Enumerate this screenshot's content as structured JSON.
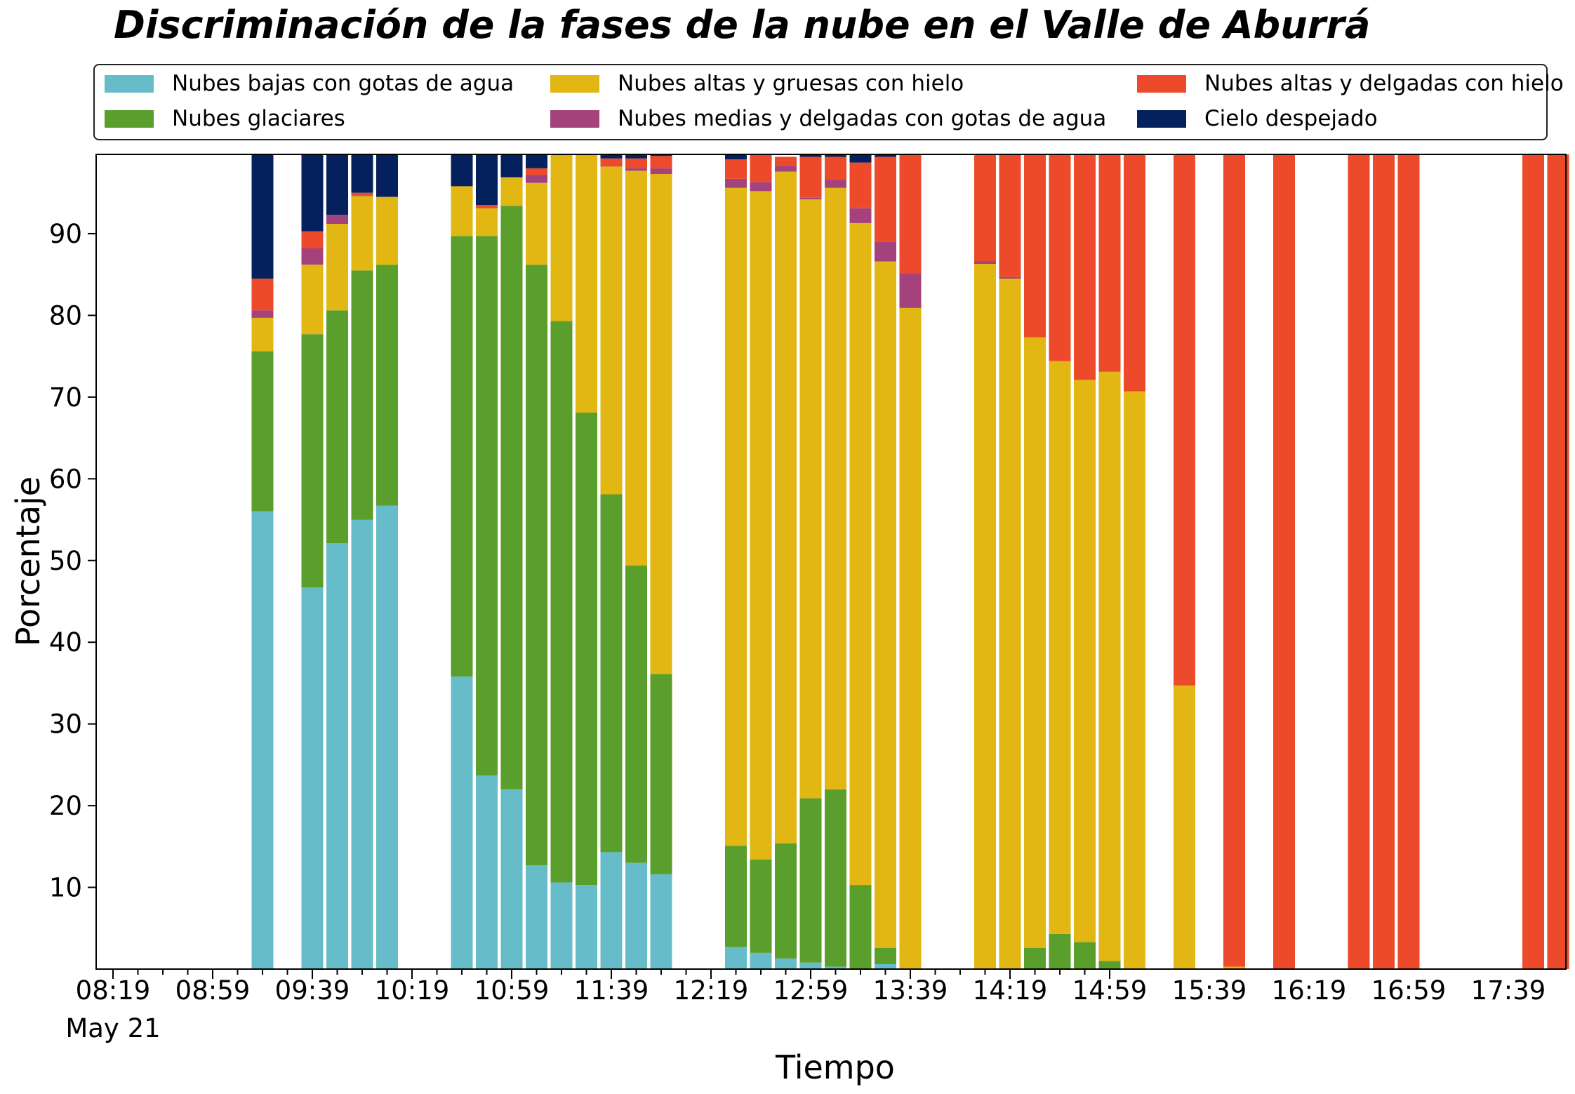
{
  "chart_data": {
    "type": "bar",
    "stacked": true,
    "title": "Discriminación de la fases de la nube en el Valle de Aburrá",
    "xlabel": "Tiempo",
    "ylabel": "Porcentaje",
    "x_start": "08:19",
    "x_step_minutes": 10,
    "x_tick_labels": [
      "08:19",
      "08:59",
      "09:39",
      "10:19",
      "10:59",
      "11:39",
      "12:19",
      "12:59",
      "13:39",
      "14:19",
      "14:59",
      "15:39",
      "16:19",
      "16:59",
      "17:39"
    ],
    "x_tick_sublabel": "May 21",
    "y_ticks": [
      10,
      20,
      30,
      40,
      50,
      60,
      70,
      80,
      90
    ],
    "ylim": [
      0,
      99.7
    ],
    "legend_position": "top, above plot, 3 columns",
    "grid": false,
    "series": [
      {
        "name": "Nubes bajas con gotas de agua",
        "color": "#66BDC9"
      },
      {
        "name": "Nubes glaciares",
        "color": "#5A9E2B"
      },
      {
        "name": "Nubes altas y gruesas con hielo",
        "color": "#E2B714"
      },
      {
        "name": "Nubes medias y delgadas con gotas de agua",
        "color": "#A4427B"
      },
      {
        "name": "Nubes altas y delgadas con hielo",
        "color": "#EC4A2B"
      },
      {
        "name": "Cielo despejado",
        "color": "#04215D"
      }
    ],
    "bars": [
      {
        "time": "09:19",
        "values": [
          56.0,
          19.6,
          4.1,
          0.9,
          3.9,
          15.2
        ]
      },
      {
        "time": "09:39",
        "values": [
          46.7,
          31.0,
          8.5,
          2.0,
          2.1,
          9.4
        ]
      },
      {
        "time": "09:49",
        "values": [
          52.1,
          28.5,
          10.6,
          1.1,
          0.0,
          7.4
        ]
      },
      {
        "time": "09:59",
        "values": [
          55.0,
          30.5,
          9.1,
          0.1,
          0.3,
          4.7
        ]
      },
      {
        "time": "10:09",
        "values": [
          56.7,
          29.5,
          8.3,
          0.0,
          0.0,
          5.2
        ]
      },
      {
        "time": "10:39",
        "values": [
          35.8,
          53.9,
          6.1,
          0.0,
          0.0,
          3.9
        ]
      },
      {
        "time": "10:49",
        "values": [
          23.7,
          66.0,
          3.4,
          0.0,
          0.4,
          6.2
        ]
      },
      {
        "time": "10:59",
        "values": [
          22.0,
          71.4,
          3.5,
          0.0,
          0.0,
          2.8
        ]
      },
      {
        "time": "11:09",
        "values": [
          12.7,
          73.5,
          10.0,
          1.0,
          0.8,
          1.7
        ]
      },
      {
        "time": "11:19",
        "values": [
          10.6,
          68.7,
          20.3,
          0.4,
          0.2,
          0.0
        ]
      },
      {
        "time": "11:29",
        "values": [
          10.3,
          57.8,
          31.5,
          0.3,
          0.0,
          0.0
        ]
      },
      {
        "time": "11:39",
        "values": [
          14.3,
          43.8,
          40.1,
          0.0,
          1.0,
          0.5
        ]
      },
      {
        "time": "11:49",
        "values": [
          13.0,
          36.4,
          48.3,
          0.3,
          1.2,
          0.5
        ]
      },
      {
        "time": "11:59",
        "values": [
          11.6,
          24.5,
          61.2,
          0.7,
          1.5,
          0.5
        ]
      },
      {
        "time": "12:29",
        "values": [
          2.7,
          12.4,
          80.5,
          1.1,
          2.4,
          0.8
        ]
      },
      {
        "time": "12:39",
        "values": [
          2.0,
          11.4,
          81.8,
          1.1,
          3.6,
          0.0
        ]
      },
      {
        "time": "12:49",
        "values": [
          1.3,
          14.1,
          82.2,
          0.7,
          1.1,
          0.0
        ]
      },
      {
        "time": "12:59",
        "values": [
          0.8,
          20.1,
          73.3,
          0.2,
          5.0,
          0.8
        ]
      },
      {
        "time": "13:09",
        "values": [
          0.3,
          21.7,
          73.6,
          1.0,
          2.8,
          0.6
        ]
      },
      {
        "time": "13:19",
        "values": [
          0.0,
          10.3,
          81.0,
          1.8,
          5.6,
          1.0
        ]
      },
      {
        "time": "13:29",
        "values": [
          0.6,
          2.0,
          84.0,
          2.4,
          10.4,
          0.3
        ]
      },
      {
        "time": "13:39",
        "values": [
          0.0,
          0.0,
          80.9,
          4.2,
          14.6,
          0.0
        ]
      },
      {
        "time": "14:09",
        "values": [
          0.0,
          0.0,
          86.3,
          0.3,
          13.4,
          0.0
        ]
      },
      {
        "time": "14:19",
        "values": [
          0.0,
          0.0,
          84.5,
          0.2,
          15.3,
          0.0
        ]
      },
      {
        "time": "14:29",
        "values": [
          0.0,
          2.6,
          74.7,
          0.0,
          22.7,
          0.0
        ]
      },
      {
        "time": "14:39",
        "values": [
          0.0,
          4.3,
          70.1,
          0.0,
          25.6,
          0.0
        ]
      },
      {
        "time": "14:49",
        "values": [
          0.0,
          3.3,
          68.8,
          0.0,
          27.9,
          0.0
        ]
      },
      {
        "time": "14:59",
        "values": [
          0.0,
          1.0,
          72.1,
          0.0,
          26.9,
          0.0
        ]
      },
      {
        "time": "15:09",
        "values": [
          0.0,
          0.0,
          70.7,
          0.0,
          29.3,
          0.0
        ]
      },
      {
        "time": "15:29",
        "values": [
          0.0,
          0.0,
          34.7,
          0.0,
          65.3,
          0.0
        ]
      },
      {
        "time": "15:49",
        "values": [
          0.0,
          0.0,
          0.3,
          0.0,
          99.7,
          0.0
        ]
      },
      {
        "time": "16:09",
        "values": [
          0.0,
          0.0,
          0.0,
          0.0,
          100.0,
          0.0
        ]
      },
      {
        "time": "16:39",
        "values": [
          0.0,
          0.0,
          0.0,
          0.0,
          100.0,
          0.0
        ]
      },
      {
        "time": "16:49",
        "values": [
          0.0,
          0.0,
          0.0,
          0.0,
          100.0,
          0.0
        ]
      },
      {
        "time": "16:59",
        "values": [
          0.0,
          0.0,
          0.0,
          0.0,
          100.0,
          0.0
        ]
      },
      {
        "time": "17:49",
        "values": [
          0.0,
          0.0,
          0.0,
          0.0,
          100.0,
          0.0
        ]
      },
      {
        "time": "17:59",
        "values": [
          0.0,
          0.0,
          0.0,
          0.0,
          100.0,
          0.0
        ]
      }
    ]
  }
}
